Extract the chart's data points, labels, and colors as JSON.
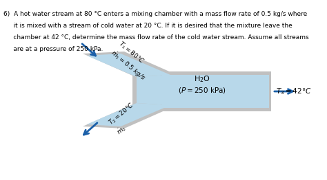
{
  "light_blue": "#b8d8ea",
  "light_blue2": "#cce5f0",
  "gray": "#a8a8a8",
  "gray2": "#c0c0c0",
  "arrow_color": "#1a5fa8",
  "label1_line1": "$T_1 = 80\\degree C$",
  "label1_line2": "$\\dot{m}_1 = 0.5$ kg/s",
  "label2_line1": "$T_2 = 20\\degree C$",
  "label2_line2": "$\\dot{m}_2$",
  "label_center_line1": "H$_2$O",
  "label_center_line2": "$(P = 250$ kPa$)$",
  "label_right": "$T_3 = 42\\degree C$",
  "text_line1": "6)  A hot water stream at 80 °C enters a mixing chamber with a mass flow rate of 0.5 kg/s where",
  "text_line2": "     it is mixed with a stream of cold water at 20 °C. If it is desired that the mixture leave the",
  "text_line3": "     chamber at 42 °C, determine the mass flow rate of the cold water stream. Assume all streams",
  "text_line4": "     are at a pressure of 250 kPa."
}
